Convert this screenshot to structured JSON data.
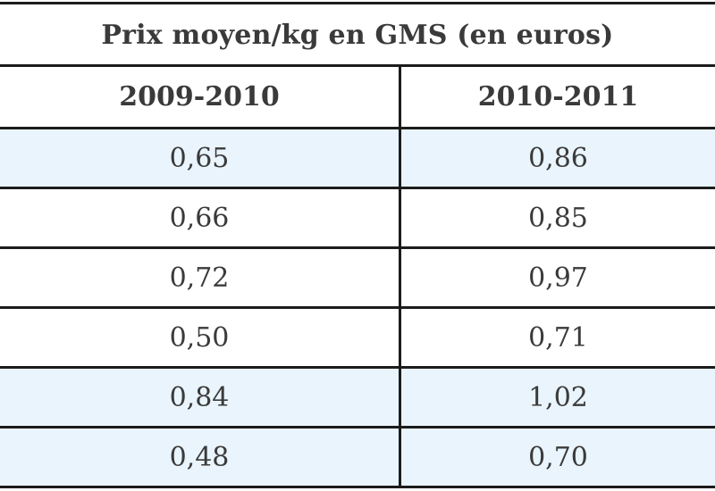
{
  "table": {
    "title": "Prix moyen/kg en GMS (en euros)",
    "columns": [
      "2009-2010",
      "2010-2011"
    ],
    "rows": [
      [
        "0,65",
        "0,86"
      ],
      [
        "0,66",
        "0,85"
      ],
      [
        "0,72",
        "0,97"
      ],
      [
        "0,50",
        "0,71"
      ],
      [
        "0,84",
        "1,02"
      ],
      [
        "0,48",
        "0,70"
      ]
    ],
    "row_shading_color": "#e9f4fc",
    "border_color": "#1c1c1c"
  }
}
